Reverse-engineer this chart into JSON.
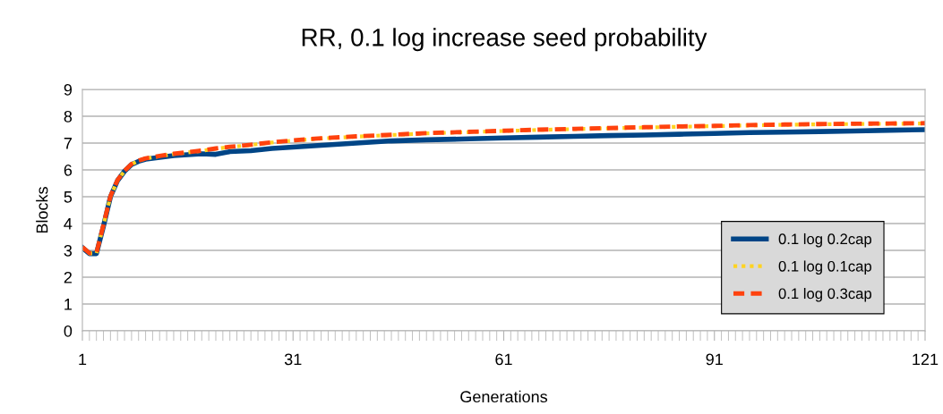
{
  "chart_data": {
    "type": "line",
    "title": "RR, 0.1 log increase seed probability",
    "xlabel": "Generations",
    "ylabel": "Blocks",
    "x": [
      1,
      2,
      3,
      4,
      5,
      6,
      7,
      8,
      9,
      10,
      12,
      14,
      16,
      18,
      20,
      22,
      25,
      28,
      31,
      35,
      40,
      45,
      50,
      55,
      61,
      66,
      71,
      76,
      81,
      86,
      91,
      96,
      101,
      106,
      111,
      116,
      121
    ],
    "series": [
      {
        "name": "0.1 log 0.2cap",
        "color": "#004586",
        "line_style": "solid",
        "values": [
          3.1,
          2.88,
          2.88,
          3.9,
          5.0,
          5.6,
          5.95,
          6.2,
          6.32,
          6.4,
          6.47,
          6.53,
          6.57,
          6.6,
          6.58,
          6.68,
          6.72,
          6.8,
          6.85,
          6.92,
          7.0,
          7.08,
          7.12,
          7.15,
          7.19,
          7.22,
          7.25,
          7.28,
          7.3,
          7.33,
          7.36,
          7.39,
          7.41,
          7.43,
          7.45,
          7.48,
          7.5
        ]
      },
      {
        "name": "0.1 log 0.1cap",
        "color": "#ffd320",
        "line_style": "dotted",
        "values": [
          3.11,
          2.89,
          2.89,
          3.94,
          5.01,
          5.61,
          5.96,
          6.21,
          6.34,
          6.42,
          6.51,
          6.59,
          6.65,
          6.71,
          6.79,
          6.85,
          6.93,
          7.02,
          7.09,
          7.17,
          7.24,
          7.3,
          7.36,
          7.4,
          7.45,
          7.49,
          7.52,
          7.55,
          7.58,
          7.61,
          7.63,
          7.66,
          7.68,
          7.7,
          7.71,
          7.72,
          7.73
        ]
      },
      {
        "name": "0.1 log 0.3cap",
        "color": "#ff420e",
        "line_style": "dashed",
        "values": [
          3.12,
          2.9,
          2.9,
          3.95,
          5.02,
          5.62,
          5.97,
          6.22,
          6.35,
          6.43,
          6.52,
          6.6,
          6.66,
          6.72,
          6.8,
          6.86,
          6.94,
          7.03,
          7.1,
          7.18,
          7.25,
          7.31,
          7.37,
          7.41,
          7.46,
          7.5,
          7.53,
          7.56,
          7.59,
          7.62,
          7.64,
          7.67,
          7.69,
          7.71,
          7.72,
          7.73,
          7.74
        ]
      }
    ],
    "xlim": [
      1,
      121
    ],
    "xticks": [
      1,
      31,
      61,
      91,
      121
    ],
    "ylim": [
      0,
      9
    ],
    "yticks": [
      0,
      1,
      2,
      3,
      4,
      5,
      6,
      7,
      8,
      9
    ],
    "grid": "y",
    "legend": "bottom right",
    "marker": "none"
  }
}
